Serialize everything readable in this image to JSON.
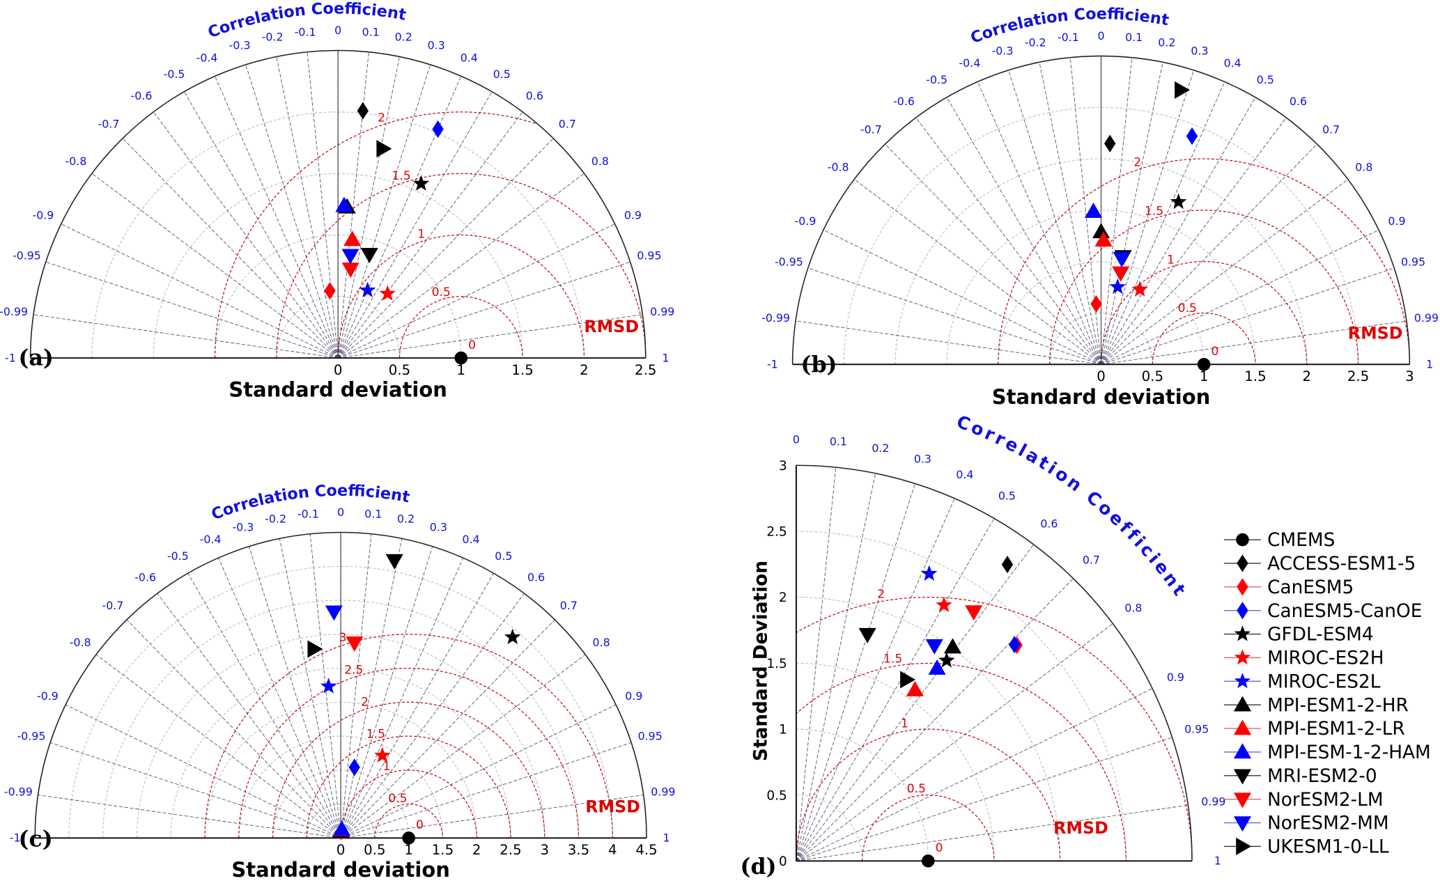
{
  "legend": [
    {
      "model": "CMEMS",
      "marker": "circle",
      "color": "#000000"
    },
    {
      "model": "ACCESS-ESM1-5",
      "marker": "diamond",
      "color": "#000000"
    },
    {
      "model": "CanESM5",
      "marker": "diamond",
      "color": "#ff0000"
    },
    {
      "model": "CanESM5-CanOE",
      "marker": "diamond",
      "color": "#0000ff"
    },
    {
      "model": "GFDL-ESM4",
      "marker": "star",
      "color": "#000000"
    },
    {
      "model": "MIROC-ES2H",
      "marker": "star",
      "color": "#ff0000"
    },
    {
      "model": "MIROC-ES2L",
      "marker": "star",
      "color": "#0000ff"
    },
    {
      "model": "MPI-ESM1-2-HR",
      "marker": "triangle-up",
      "color": "#000000"
    },
    {
      "model": "MPI-ESM1-2-LR",
      "marker": "triangle-up",
      "color": "#ff0000"
    },
    {
      "model": "MPI-ESM-1-2-HAM",
      "marker": "triangle-up",
      "color": "#0000ff"
    },
    {
      "model": "MRI-ESM2-0",
      "marker": "triangle-down",
      "color": "#000000"
    },
    {
      "model": "NorESM2-LM",
      "marker": "triangle-down",
      "color": "#ff0000"
    },
    {
      "model": "NorESM2-MM",
      "marker": "triangle-down",
      "color": "#0000ff"
    },
    {
      "model": "UKESM1-0-LL",
      "marker": "triangle-right",
      "color": "#000000"
    }
  ],
  "chart_data": [
    {
      "type": "taylor",
      "panel": "(a)",
      "extent": "half",
      "title": "Correlation Coefficient",
      "xlabel": "Standard deviation",
      "ylabel": "",
      "std_range": [
        0,
        2.5
      ],
      "std_ticks": [
        "0",
        "0.5",
        "1",
        "1.5",
        "2",
        "2.5"
      ],
      "corr_ticks": [
        "-1",
        "-0.99",
        "-0.95",
        "-0.9",
        "-0.8",
        "-0.7",
        "-0.6",
        "-0.5",
        "-0.4",
        "-0.3",
        "-0.2",
        "-0.1",
        "0",
        "0.1",
        "0.2",
        "0.3",
        "0.4",
        "0.5",
        "0.6",
        "0.7",
        "0.8",
        "0.9",
        "0.95",
        "0.99",
        "1"
      ],
      "rmsd_label": "RMSD",
      "rmsd_contours": [
        "0",
        "0.5",
        "1",
        "1.5",
        "2"
      ],
      "reference": {
        "model": "CMEMS",
        "std": 1,
        "corr": 1
      },
      "points": [
        {
          "model": "ACCESS-ESM1-5",
          "std": 2.02,
          "corr": 0.1
        },
        {
          "model": "CanESM5",
          "std": 0.55,
          "corr": -0.12
        },
        {
          "model": "CanESM5-CanOE",
          "std": 2.03,
          "corr": 0.4
        },
        {
          "model": "GFDL-ESM4",
          "std": 1.57,
          "corr": 0.43
        },
        {
          "model": "MIROC-ES2H",
          "std": 0.66,
          "corr": 0.61
        },
        {
          "model": "MIROC-ES2L",
          "std": 0.6,
          "corr": 0.4
        },
        {
          "model": "MPI-ESM1-2-HR",
          "std": 1.23,
          "corr": 0.06
        },
        {
          "model": "MPI-ESM1-2-LR",
          "std": 0.97,
          "corr": 0.12
        },
        {
          "model": "MPI-ESM-1-2-HAM",
          "std": 1.24,
          "corr": 0.04
        },
        {
          "model": "MRI-ESM2-0",
          "std": 0.88,
          "corr": 0.29
        },
        {
          "model": "NorESM2-LM",
          "std": 0.73,
          "corr": 0.14
        },
        {
          "model": "NorESM2-MM",
          "std": 0.84,
          "corr": 0.12
        },
        {
          "model": "UKESM1-0-LL",
          "std": 1.74,
          "corr": 0.21
        }
      ]
    },
    {
      "type": "taylor",
      "panel": "(b)",
      "extent": "half",
      "title": "Correlation Coefficient",
      "xlabel": "Standard deviation",
      "ylabel": "",
      "std_range": [
        0,
        3
      ],
      "std_ticks": [
        "0",
        "0.5",
        "1",
        "1.5",
        "2",
        "2.5",
        "3"
      ],
      "corr_ticks": [
        "-1",
        "-0.99",
        "-0.95",
        "-0.9",
        "-0.8",
        "-0.7",
        "-0.6",
        "-0.5",
        "-0.4",
        "-0.3",
        "-0.2",
        "-0.1",
        "0",
        "0.1",
        "0.2",
        "0.3",
        "0.4",
        "0.5",
        "0.6",
        "0.7",
        "0.8",
        "0.9",
        "0.95",
        "0.99",
        "1"
      ],
      "rmsd_label": "RMSD",
      "rmsd_contours": [
        "0",
        "0.5",
        "1",
        "1.5",
        "2"
      ],
      "reference": {
        "model": "CMEMS",
        "std": 1,
        "corr": 1
      },
      "points": [
        {
          "model": "ACCESS-ESM1-5",
          "std": 2.15,
          "corr": 0.04
        },
        {
          "model": "CanESM5",
          "std": 0.59,
          "corr": -0.08
        },
        {
          "model": "CanESM5-CanOE",
          "std": 2.39,
          "corr": 0.37
        },
        {
          "model": "GFDL-ESM4",
          "std": 1.75,
          "corr": 0.43
        },
        {
          "model": "MIROC-ES2H",
          "std": 0.82,
          "corr": 0.46
        },
        {
          "model": "MIROC-ES2L",
          "std": 0.77,
          "corr": 0.21
        },
        {
          "model": "MPI-ESM1-2-HR",
          "std": 1.29,
          "corr": 0.0
        },
        {
          "model": "MPI-ESM1-2-LR",
          "std": 1.21,
          "corr": 0.02
        },
        {
          "model": "MPI-ESM-1-2-HAM",
          "std": 1.49,
          "corr": -0.05
        },
        {
          "model": "MRI-ESM2-0",
          "std": 1.07,
          "corr": 0.2
        },
        {
          "model": "NorESM2-LM",
          "std": 0.91,
          "corr": 0.21
        },
        {
          "model": "NorESM2-MM",
          "std": 1.05,
          "corr": 0.19
        },
        {
          "model": "UKESM1-0-LL",
          "std": 2.78,
          "corr": 0.28
        }
      ]
    },
    {
      "type": "taylor",
      "panel": "(c)",
      "extent": "half",
      "title": "Correlation Coefficient",
      "xlabel": "Standard deviation",
      "ylabel": "",
      "std_range": [
        0,
        4.5
      ],
      "std_ticks": [
        "0",
        "0.5",
        "1",
        "1.5",
        "2",
        "2.5",
        "3",
        "3.5",
        "4",
        "4.5"
      ],
      "corr_ticks": [
        "-1",
        "-0.99",
        "-0.95",
        "-0.9",
        "-0.8",
        "-0.7",
        "-0.6",
        "-0.5",
        "-0.4",
        "-0.3",
        "-0.2",
        "-0.1",
        "0",
        "0.1",
        "0.2",
        "0.3",
        "0.4",
        "0.5",
        "0.6",
        "0.7",
        "0.8",
        "0.9",
        "0.95",
        "0.99",
        "1"
      ],
      "rmsd_label": "RMSD",
      "rmsd_contours": [
        "0",
        "0.5",
        "1",
        "1.5",
        "2",
        "2.5",
        "3"
      ],
      "reference": {
        "model": "CMEMS",
        "std": 1,
        "corr": 1
      },
      "points": [
        {
          "model": "ACCESS-ESM1-5",
          "std": 0.1,
          "corr": 0.05
        },
        {
          "model": "CanESM5",
          "std": 0.1,
          "corr": 0.1
        },
        {
          "model": "CanESM5-CanOE",
          "std": 1.06,
          "corr": 0.19
        },
        {
          "model": "GFDL-ESM4",
          "std": 3.89,
          "corr": 0.65
        },
        {
          "model": "MIROC-ES2H",
          "std": 1.36,
          "corr": 0.45
        },
        {
          "model": "MIROC-ES2L",
          "std": 2.24,
          "corr": -0.08
        },
        {
          "model": "MPI-ESM1-2-HR",
          "std": 0.1,
          "corr": 0.02
        },
        {
          "model": "MPI-ESM1-2-LR",
          "std": 0.12,
          "corr": 0.1
        },
        {
          "model": "MPI-ESM-1-2-HAM",
          "std": 0.13,
          "corr": 0.12
        },
        {
          "model": "MRI-ESM2-0",
          "std": 4.16,
          "corr": 0.19
        },
        {
          "model": "NorESM2-LM",
          "std": 2.88,
          "corr": 0.07
        },
        {
          "model": "NorESM2-MM",
          "std": 3.33,
          "corr": -0.03
        },
        {
          "model": "UKESM1-0-LL",
          "std": 2.81,
          "corr": -0.14
        }
      ]
    },
    {
      "type": "taylor",
      "panel": "(d)",
      "extent": "quarter",
      "title": "Correlation Coefficient",
      "xlabel": "",
      "ylabel": "Standard Deviation",
      "std_range": [
        0,
        3
      ],
      "std_ticks": [
        "0",
        "0.5",
        "1",
        "1.5",
        "2",
        "2.5",
        "3"
      ],
      "corr_ticks": [
        "0",
        "0.1",
        "0.2",
        "0.3",
        "0.4",
        "0.5",
        "0.6",
        "0.7",
        "0.8",
        "0.9",
        "0.95",
        "0.99",
        "1"
      ],
      "rmsd_label": "RMSD",
      "rmsd_contours": [
        "0",
        "0.5",
        "1",
        "1.5",
        "2"
      ],
      "reference": {
        "model": "CMEMS",
        "std": 1,
        "corr": 1
      },
      "points": [
        {
          "model": "ACCESS-ESM1-5",
          "std": 2.76,
          "corr": 0.58
        },
        {
          "model": "CanESM5",
          "std": 2.34,
          "corr": 0.715
        },
        {
          "model": "CanESM5-CanOE",
          "std": 2.33,
          "corr": 0.71
        },
        {
          "model": "GFDL-ESM4",
          "std": 1.9,
          "corr": 0.6
        },
        {
          "model": "MIROC-ES2H",
          "std": 2.24,
          "corr": 0.5
        },
        {
          "model": "MIROC-ES2L",
          "std": 2.4,
          "corr": 0.42
        },
        {
          "model": "MPI-ESM1-2-HR",
          "std": 2.01,
          "corr": 0.59
        },
        {
          "model": "MPI-ESM1-2-LR",
          "std": 1.58,
          "corr": 0.57
        },
        {
          "model": "MPI-ESM-1-2-HAM",
          "std": 1.81,
          "corr": 0.59
        },
        {
          "model": "MRI-ESM2-0",
          "std": 1.8,
          "corr": 0.3
        },
        {
          "model": "NorESM2-LM",
          "std": 2.32,
          "corr": 0.58
        },
        {
          "model": "NorESM2-MM",
          "std": 1.94,
          "corr": 0.54
        },
        {
          "model": "UKESM1-0-LL",
          "std": 1.61,
          "corr": 0.52
        }
      ]
    }
  ]
}
